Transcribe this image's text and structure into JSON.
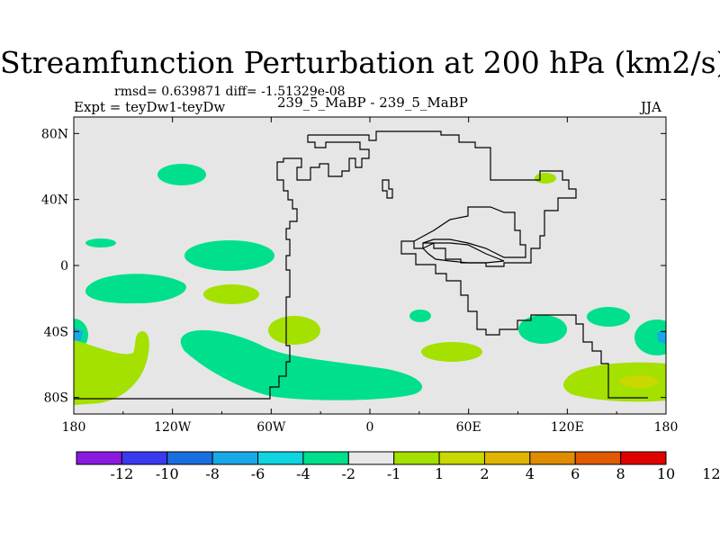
{
  "title": "Streamfunction Perturbation at 200 hPa (km2/s)",
  "stats_text": "rmsd= 0.639871 diff= -1.51329e-08",
  "experiment_label": "Expt = teyDw1-teyDw",
  "case_label": "239_5_MaBP - 239_5_MaBP",
  "season": "JJA",
  "colors": {
    "background_field": "#e6e6e6",
    "coastline": "#000000",
    "ocean_bins": [
      "#8b1ae0",
      "#3a3af0",
      "#1a6fe0",
      "#18a8e6",
      "#10d4e0",
      "#00e08c",
      "#e8e8e8",
      "#a4e000",
      "#c8d800",
      "#e0b400",
      "#e08c00",
      "#e05a00",
      "#e00000"
    ]
  },
  "chart_data": {
    "type": "heatmap",
    "projection": "cylindrical-equidistant",
    "x_ticks": [
      "180",
      "120W",
      "60W",
      "0",
      "60E",
      "120E",
      "180"
    ],
    "x_tick_values": [
      -180,
      -120,
      -60,
      0,
      60,
      120,
      180
    ],
    "y_ticks": [
      "80N",
      "40N",
      "0",
      "40S",
      "80S"
    ],
    "y_tick_values": [
      80,
      40,
      0,
      -40,
      -80
    ],
    "xlim": [
      -180,
      180
    ],
    "ylim": [
      -90,
      90
    ],
    "colorbar": {
      "labels": [
        "-12",
        "-10",
        "-8",
        "-6",
        "-4",
        "-2",
        "-1",
        "1",
        "2",
        "4",
        "6",
        "8",
        "10",
        "12"
      ],
      "colors": [
        "#8b1ae0",
        "#3a3af0",
        "#1a6fe0",
        "#18a8e6",
        "#10d4e0",
        "#00e08c",
        "#e8e8e8",
        "#a4e000",
        "#c8d800",
        "#e0b400",
        "#e08c00",
        "#e05a00",
        "#e00000"
      ]
    },
    "anomalies": [
      {
        "name": "green-blob-top-left",
        "bin": "-2 to -1",
        "lon": [
          -133,
          -118
        ],
        "lat": [
          51,
          60
        ]
      },
      {
        "name": "green-blob-west-equator",
        "bin": "-2 to -1",
        "lon": [
          -174,
          -158
        ],
        "lat": [
          12,
          15
        ]
      },
      {
        "name": "green-blob-mid-pacific",
        "bin": "-2 to -1",
        "lon": [
          -110,
          -72
        ],
        "lat": [
          0,
          15
        ]
      },
      {
        "name": "green-blob-southwest",
        "bin": "-2 to -1",
        "lon": [
          -180,
          -130
        ],
        "lat": [
          -22,
          -5
        ]
      },
      {
        "name": "green-blob-far-west-south",
        "bin": "-2 to -1",
        "lon": [
          -180,
          -170
        ],
        "lat": [
          -50,
          -30
        ]
      },
      {
        "name": "green-blob-south-africa-west",
        "bin": "-2 to -1",
        "lon": [
          30,
          40
        ],
        "lat": [
          -35,
          -28
        ]
      },
      {
        "name": "green-blob-south-indian",
        "bin": "-2 to -1",
        "lon": [
          90,
          115
        ],
        "lat": [
          -45,
          -30
        ]
      },
      {
        "name": "green-blob-east-pacific",
        "bin": "-2 to -1",
        "lon": [
          150,
          175
        ],
        "lat": [
          -38,
          -25
        ]
      },
      {
        "name": "green-blob-far-east-south",
        "bin": "-2 to -1",
        "lon": [
          170,
          180
        ],
        "lat": [
          -53,
          -33
        ]
      },
      {
        "name": "green-band-southern-ocean",
        "bin": "-2 to -1",
        "lon": [
          -110,
          35
        ],
        "lat": [
          -82,
          -40
        ]
      },
      {
        "name": "yellow-green-blob-south-pacific",
        "bin": "1 to 2",
        "lon": [
          -180,
          -135
        ],
        "lat": [
          -82,
          -38
        ]
      },
      {
        "name": "yellow-green-blob-mid-pacific-south",
        "bin": "1 to 2",
        "lon": [
          -100,
          -70
        ],
        "lat": [
          -20,
          -10
        ]
      },
      {
        "name": "yellow-green-blob-south-america",
        "bin": "1 to 2",
        "lon": [
          -75,
          -45
        ],
        "lat": [
          -48,
          -33
        ]
      },
      {
        "name": "yellow-green-blob-south-atlantic",
        "bin": "1 to 2",
        "lon": [
          30,
          65
        ],
        "lat": [
          -55,
          -44
        ]
      },
      {
        "name": "yellow-green-blob-southeast-pacific",
        "bin": "1 to 2",
        "lon": [
          118,
          180
        ],
        "lat": [
          -82,
          -60
        ]
      },
      {
        "name": "yellow-green-blob-siberia",
        "bin": "1 to 2",
        "lon": [
          102,
          114
        ],
        "lat": [
          42,
          48
        ]
      },
      {
        "name": "gold-patch-southeast",
        "bin": "2 to 4",
        "lon": [
          155,
          175
        ],
        "lat": [
          -77,
          -71
        ]
      }
    ]
  }
}
